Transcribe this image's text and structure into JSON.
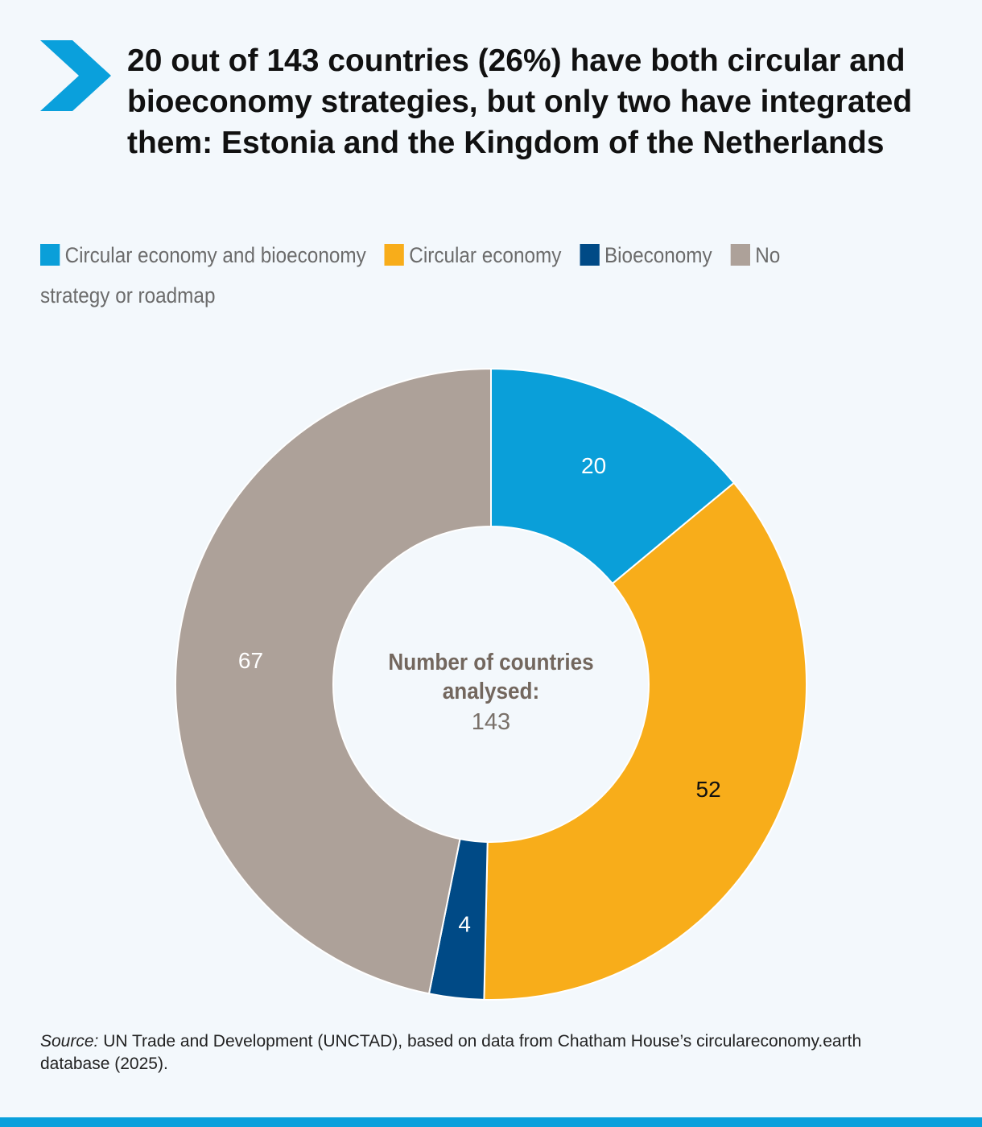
{
  "title": "20 out of 143 countries (26%) have both circular and bioeconomy strategies, but only two have integrated them: Estonia and the Kingdom of the Netherlands",
  "colors": {
    "accent": "#0aa0dc",
    "circular_and_bio": "#0a9fd9",
    "circular": "#f8ad1a",
    "bio": "#004a86",
    "none": "#ada199"
  },
  "chart_data": {
    "type": "pie",
    "donut": true,
    "categories": [
      "Circular economy and bioeconomy",
      "Circular economy",
      "Bioeconomy",
      "No strategy or roadmap"
    ],
    "values": [
      20,
      52,
      4,
      67
    ],
    "legend": "top",
    "center_label": "Number of countries analysed:",
    "center_value": "143"
  },
  "source": {
    "prefix": "Source:",
    "text": " UN Trade and Development (UNCTAD), based on data from Chatham House’s circulareconomy.earth database (2025)."
  }
}
